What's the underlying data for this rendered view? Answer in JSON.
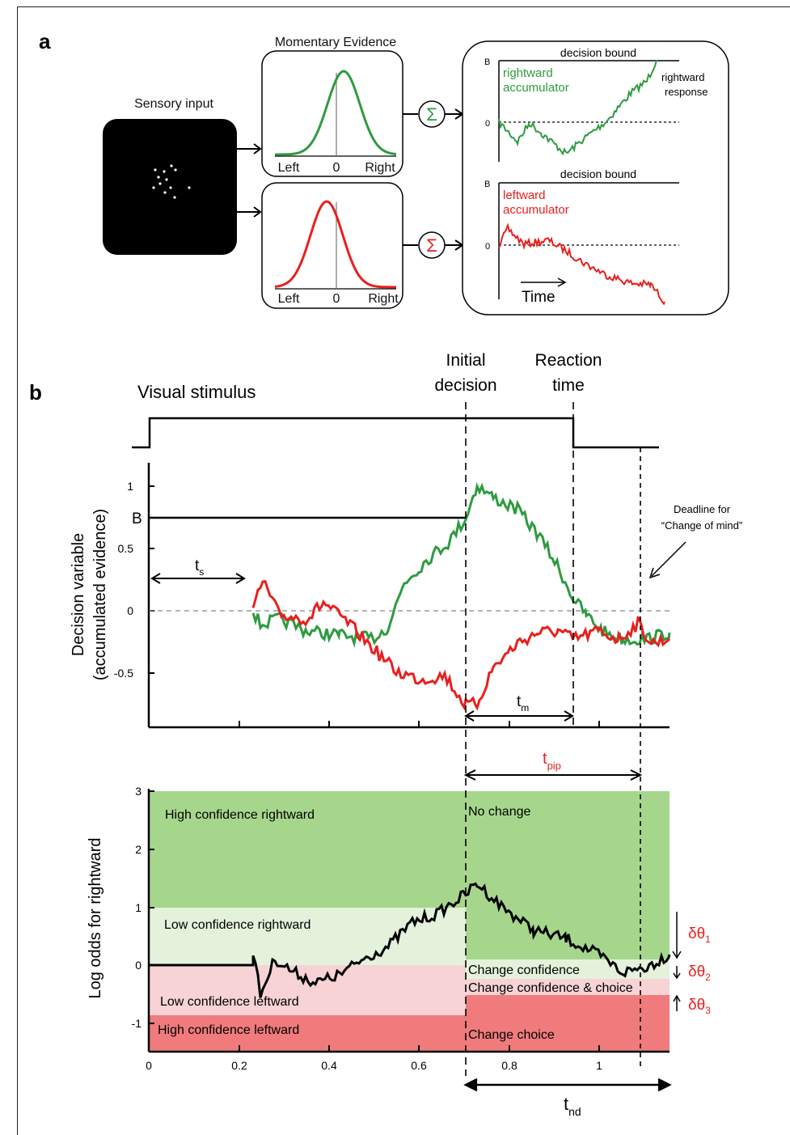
{
  "panel_a": {
    "letter": "a",
    "sensory_title": "Sensory input",
    "momentary_title": "Momentary Evidence",
    "sigma": "Σ",
    "left_label": "Left",
    "zero_label": "0",
    "right_label": "Right",
    "decision_bound_top": "decision bound",
    "decision_bound_bottom": "decision bound",
    "rightward_acc_1": "rightward",
    "rightward_acc_2": "accumulator",
    "leftward_acc_1": "leftward",
    "leftward_acc_2": "accumulator",
    "rightward_resp_1": "rightward",
    "rightward_resp_2": "response",
    "bound_B_top": "B",
    "bound_B_bottom": "B",
    "zero_top": "0",
    "zero_bottom": "0",
    "time_label": "Time",
    "colors": {
      "green": "#2e9b40",
      "red": "#e8201e"
    }
  },
  "panel_b": {
    "letter": "b",
    "visual_stimulus": "Visual stimulus",
    "initial_decision_1": "Initial",
    "initial_decision_2": "decision",
    "reaction_time_1": "Reaction",
    "reaction_time_2": "time",
    "deadline_1": "Deadline for",
    "deadline_2": "“Change of mind”",
    "ylabel_1": "Decision variable",
    "ylabel_2": "(accumulated evidence)",
    "bound_label": "B",
    "yticks_top": [
      "1",
      "0.5",
      "0",
      "-0.5"
    ],
    "ts": "t",
    "ts_sub": "s",
    "tm": "t",
    "tm_sub": "m",
    "tpip": "t",
    "tpip_sub": "pip",
    "ylabel_bottom": "Log odds for rightward",
    "yticks_bottom": [
      "3",
      "2",
      "1",
      "0",
      "-1"
    ],
    "xticks": [
      "0",
      "0.2",
      "0.4",
      "0.6",
      "0.8",
      "1"
    ],
    "regions": {
      "high_right": "High confidence rightward",
      "low_right": "Low confidence rightward",
      "low_left": "Low confidence leftward",
      "high_left": "High confidence leftward",
      "no_change": "No change",
      "change_conf": "Change confidence",
      "change_conf_choice": "Change confidence & choice",
      "change_choice": "Change choice"
    },
    "delta1": "δθ",
    "delta1_sub": "1",
    "delta2": "δθ",
    "delta2_sub": "2",
    "delta3": "δθ",
    "delta3_sub": "3",
    "tnd": "t",
    "tnd_sub": "nd",
    "region_colors": {
      "high_right": "#a6d68c",
      "low_right": "#e4f2dc",
      "low_left": "#f7d3d6",
      "high_left": "#f07b7c"
    },
    "series_colors": {
      "green": "#2e9b40",
      "red": "#e8201e",
      "black": "#000000"
    }
  }
}
